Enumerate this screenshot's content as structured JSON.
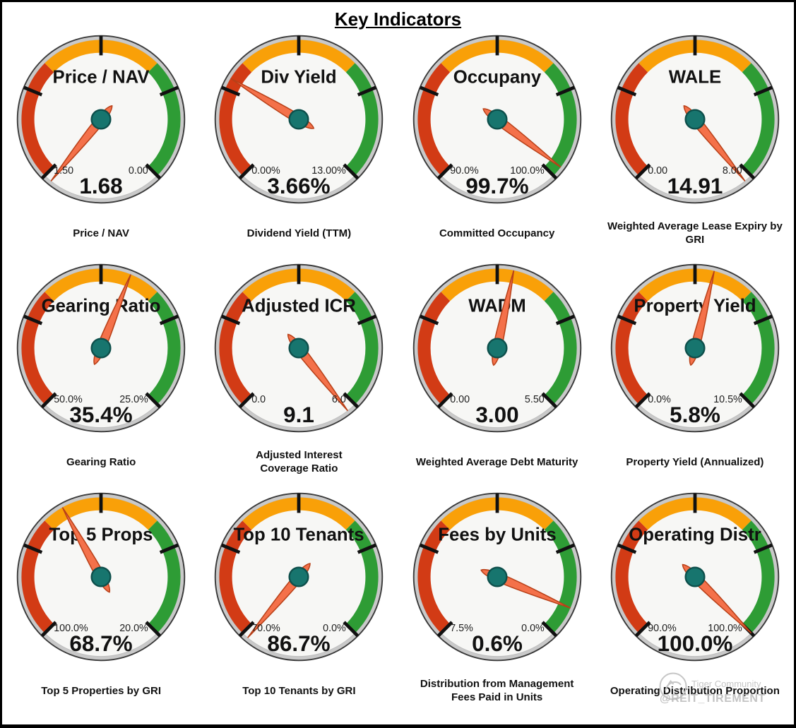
{
  "header": {
    "title": "Key Indicators"
  },
  "watermark": {
    "community": "Tiger Community",
    "handle": "@REIT_TIREMENT",
    "logo_icon": "tiger-logo-icon"
  },
  "colors": {
    "band_red": "#d23b15",
    "band_orange": "#f9a008",
    "band_green": "#2e9c35",
    "ring": "#c9c9c9",
    "ring_outline": "#3a3a3a",
    "face": "#f7f7f5",
    "face_outline": "#bdbdbd",
    "needle": "#f4714a",
    "needle_outline": "#b84018",
    "hub": "#17756e",
    "hub_outline": "#0d4f4b",
    "tick": "#111111",
    "text": "#111111",
    "watermark_gray": "#c6c6c6"
  },
  "gauge_config": {
    "arc_start_deg": -135,
    "arc_end_deg": 135,
    "band_segments": [
      {
        "from_deg": -135,
        "to_deg": -45,
        "color_key": "band_red"
      },
      {
        "from_deg": -45,
        "to_deg": 45,
        "color_key": "band_orange"
      },
      {
        "from_deg": 45,
        "to_deg": 135,
        "color_key": "band_green"
      }
    ],
    "tick_angles_deg": [
      -135,
      -67.5,
      0,
      67.5,
      135
    ]
  },
  "chart_data": [
    {
      "type": "gauge",
      "title": "Price / NAV",
      "value": 1.68,
      "value_display": "1.68",
      "scale_left_label": "1.50",
      "scale_right_label": "0.00",
      "needle_angle_deg": -141,
      "subtitle": "Price / NAV"
    },
    {
      "type": "gauge",
      "title": "Div Yield",
      "value": 3.66,
      "value_display": "3.66%",
      "scale_left_label": "0.00%",
      "scale_right_label": "13.00%",
      "needle_angle_deg": -59,
      "subtitle": "Dividend Yield (TTM)"
    },
    {
      "type": "gauge",
      "title": "Occupany",
      "value": 99.7,
      "value_display": "99.7%",
      "scale_left_label": "90.0%",
      "scale_right_label": "100.0%",
      "needle_angle_deg": 127,
      "subtitle": "Committed Occupancy"
    },
    {
      "type": "gauge",
      "title": "WALE",
      "value": 14.91,
      "value_display": "14.91",
      "scale_left_label": "0.00",
      "scale_right_label": "8.00",
      "needle_angle_deg": 141,
      "subtitle": "Weighted Average Lease Expiry by\nGRI"
    },
    {
      "type": "gauge",
      "title": "Gearing Ratio",
      "value": 35.4,
      "value_display": "35.4%",
      "scale_left_label": "50.0%",
      "scale_right_label": "25.0%",
      "needle_angle_deg": 22,
      "subtitle": "Gearing Ratio"
    },
    {
      "type": "gauge",
      "title": "Adjusted ICR",
      "value": 9.1,
      "value_display": "9.1",
      "scale_left_label": "0.0",
      "scale_right_label": "6.0",
      "needle_angle_deg": 142,
      "subtitle": "Adjusted Interest\nCoverage Ratio"
    },
    {
      "type": "gauge",
      "title": "WADM",
      "value": 3.0,
      "value_display": "3.00",
      "scale_left_label": "0.00",
      "scale_right_label": "5.50",
      "needle_angle_deg": 12,
      "subtitle": "Weighted Average Debt Maturity"
    },
    {
      "type": "gauge",
      "title": "Property Yield",
      "value": 5.8,
      "value_display": "5.8%",
      "scale_left_label": "0.0%",
      "scale_right_label": "10.5%",
      "needle_angle_deg": 14,
      "subtitle": "Property Yield (Annualized)"
    },
    {
      "type": "gauge",
      "title": "Top 5 Props",
      "value": 68.7,
      "value_display": "68.7%",
      "scale_left_label": "100.0%",
      "scale_right_label": "20.0%",
      "needle_angle_deg": -29,
      "subtitle": "Top 5 Properties by GRI"
    },
    {
      "type": "gauge",
      "title": "Top 10 Tenants",
      "value": 86.7,
      "value_display": "86.7%",
      "scale_left_label": "70.0%",
      "scale_right_label": "0.0%",
      "needle_angle_deg": -140,
      "subtitle": "Top 10 Tenants by GRI"
    },
    {
      "type": "gauge",
      "title": "Fees by Units",
      "value": 0.6,
      "value_display": "0.6%",
      "scale_left_label": "7.5%",
      "scale_right_label": "0.0%",
      "needle_angle_deg": 113,
      "subtitle": "Distribution from Management\nFees Paid in Units"
    },
    {
      "type": "gauge",
      "title": "Operating Distr",
      "value": 100.0,
      "value_display": "100.0%",
      "scale_left_label": "90.0%",
      "scale_right_label": "100.0%",
      "needle_angle_deg": 135,
      "subtitle": "Operating Distribution Proportion"
    }
  ]
}
